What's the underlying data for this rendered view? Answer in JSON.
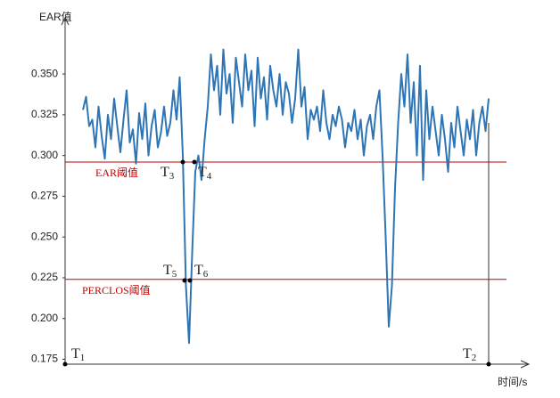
{
  "chart_data": {
    "type": "line",
    "ylabel": "EAR值",
    "xlabel": "时间/s",
    "ylim": [
      0.172,
      0.379
    ],
    "yticks": [
      {
        "value": 0.175,
        "label": "0.175"
      },
      {
        "value": 0.2,
        "label": "0.200"
      },
      {
        "value": 0.225,
        "label": "0.225"
      },
      {
        "value": 0.25,
        "label": "0.250"
      },
      {
        "value": 0.275,
        "label": "0.275"
      },
      {
        "value": 0.3,
        "label": "0.300"
      },
      {
        "value": 0.325,
        "label": "0.325"
      },
      {
        "value": 0.35,
        "label": "0.350"
      }
    ],
    "color": "#2e75b6",
    "values": [
      0.328,
      0.336,
      0.318,
      0.322,
      0.305,
      0.33,
      0.312,
      0.298,
      0.325,
      0.31,
      0.335,
      0.318,
      0.302,
      0.322,
      0.34,
      0.308,
      0.316,
      0.295,
      0.326,
      0.31,
      0.332,
      0.3,
      0.318,
      0.328,
      0.305,
      0.314,
      0.33,
      0.312,
      0.32,
      0.34,
      0.322,
      0.348,
      0.3,
      0.22,
      0.185,
      0.24,
      0.29,
      0.3,
      0.285,
      0.31,
      0.33,
      0.362,
      0.34,
      0.355,
      0.325,
      0.365,
      0.338,
      0.35,
      0.32,
      0.36,
      0.345,
      0.33,
      0.362,
      0.34,
      0.352,
      0.318,
      0.36,
      0.335,
      0.348,
      0.322,
      0.355,
      0.34,
      0.33,
      0.35,
      0.325,
      0.345,
      0.338,
      0.32,
      0.335,
      0.365,
      0.33,
      0.342,
      0.31,
      0.328,
      0.322,
      0.33,
      0.315,
      0.34,
      0.32,
      0.31,
      0.325,
      0.318,
      0.33,
      0.322,
      0.305,
      0.32,
      0.315,
      0.328,
      0.31,
      0.322,
      0.3,
      0.318,
      0.325,
      0.31,
      0.33,
      0.34,
      0.3,
      0.25,
      0.195,
      0.22,
      0.28,
      0.32,
      0.35,
      0.33,
      0.362,
      0.32,
      0.345,
      0.3,
      0.355,
      0.285,
      0.34,
      0.31,
      0.33,
      0.315,
      0.3,
      0.325,
      0.31,
      0.29,
      0.32,
      0.305,
      0.33,
      0.315,
      0.3,
      0.322,
      0.31,
      0.328,
      0.3,
      0.32,
      0.33,
      0.315,
      0.335
    ],
    "thresholds": [
      {
        "name": "EAR阈值",
        "value": 0.296,
        "color": "#c00000"
      },
      {
        "name": "PERCLOS阈值",
        "value": 0.224,
        "color": "#c00000"
      }
    ],
    "annotations": [
      {
        "label": "T",
        "subscript": "1"
      },
      {
        "label": "T",
        "subscript": "2"
      },
      {
        "label": "T",
        "subscript": "3"
      },
      {
        "label": "T",
        "subscript": "4"
      },
      {
        "label": "T",
        "subscript": "5"
      },
      {
        "label": "T",
        "subscript": "6"
      }
    ]
  }
}
